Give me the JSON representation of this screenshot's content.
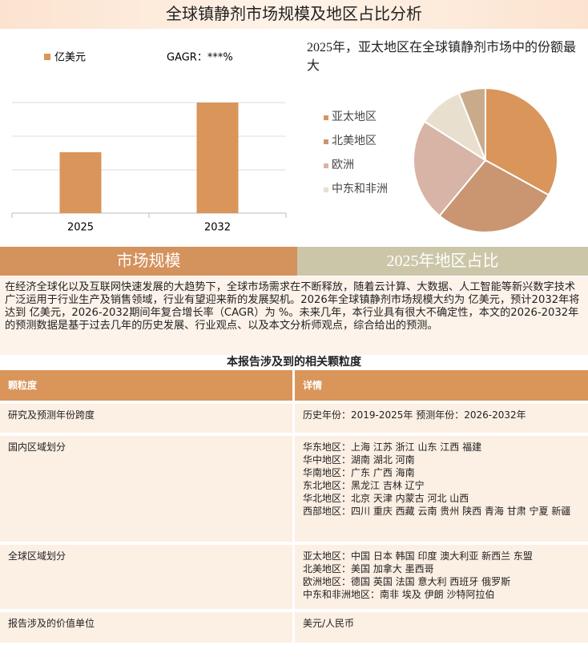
{
  "header": {
    "title": "全球镇静剂市场规模及地区占比分析"
  },
  "chart_data": [
    {
      "type": "bar",
      "categories": [
        "2025",
        "2032"
      ],
      "series": [
        {
          "name": "亿美元",
          "color": "#d9955a",
          "values": [
            76,
            138
          ]
        }
      ],
      "annotation": "GAGR：***%",
      "ylim": [
        0,
        180
      ]
    },
    {
      "type": "pie",
      "title": "2025年，亚太地区在全球镇静剂市场中的份额最大",
      "categories": [
        "亚太地区",
        "北美地区",
        "欧洲",
        "中东和非洲",
        null
      ],
      "values": [
        33,
        28,
        23,
        10,
        6
      ],
      "colors": [
        "#d9955a",
        "#c99671",
        "#d8b4a6",
        "#e9dfcf",
        "#c9ab8c"
      ]
    }
  ],
  "tabs": [
    "市场规模",
    "2025年地区占比"
  ],
  "intro": "在经济全球化以及互联网快速发展的大趋势下，全球市场需求在不断释放，随着云计算、大数据、人工智能等新兴数字技术广泛运用于行业生产及销售领域，行业有望迎来新的发展契机。2026年全球镇静剂市场规模大约为 亿美元，预计2032年将达到 亿美元，2026-2032期间年复合增长率（CAGR）为 %。未来几年，本行业具有很大不确定性，本文的2026-2032年的预测数据是基于过去几年的历史发展、行业观点、以及本文分析师观点，综合给出的预测。",
  "table": {
    "title": "本报告涉及到的相关颗粒度",
    "header": [
      "颗粒度",
      "详情"
    ],
    "rows": [
      [
        "研究及预测年份跨度",
        [
          "历史年份：2019-2025年 预测年份：2026-2032年"
        ]
      ],
      [
        "国内区域划分",
        [
          "华东地区：上海  江苏  浙江  山东  江西  福建",
          "华中地区：湖南  湖北  河南",
          "华南地区：广东  广西  海南",
          "东北地区：黑龙江  吉林  辽宁",
          "华北地区：北京  天津  内蒙古  河北  山西",
          "西部地区：四川  重庆  西藏  云南  贵州  陕西  青海  甘肃  宁夏  新疆"
        ]
      ],
      [
        "全球区域划分",
        [
          "亚太地区：中国  日本  韩国  印度  澳大利亚  新西兰  东盟",
          "北美地区：美国  加拿大  墨西哥",
          "欧洲地区：德国  英国  法国  意大利  西班牙  俄罗斯",
          "中东和非洲地区：南非  埃及  伊朗  沙特阿拉伯"
        ]
      ],
      [
        "报告涉及的价值单位",
        [
          "美元/人民币"
        ]
      ]
    ]
  }
}
